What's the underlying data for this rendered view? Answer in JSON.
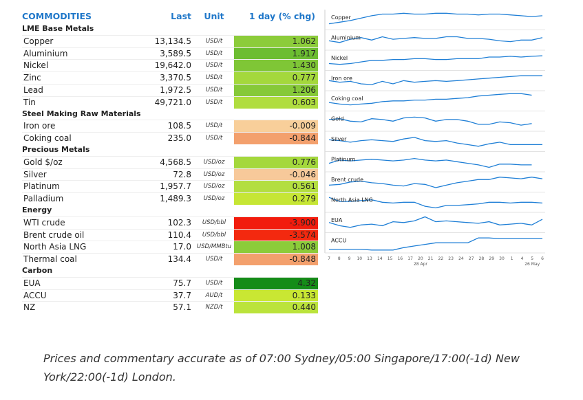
{
  "table": {
    "headers": {
      "name": "COMMODITIES",
      "last": "Last",
      "unit": "Unit",
      "chg": "1 day (% chg)"
    },
    "rows": [
      {
        "type": "section",
        "name": "LME Base Metals"
      },
      {
        "type": "item",
        "name": "Copper",
        "last": "13,134.5",
        "unit": "USD/t",
        "chg": "1.062",
        "color": "#8ccc3a"
      },
      {
        "type": "item",
        "name": "Aluminium",
        "last": "3,589.5",
        "unit": "USD/t",
        "chg": "1.917",
        "color": "#6cbd31"
      },
      {
        "type": "item",
        "name": "Nickel",
        "last": "19,642.0",
        "unit": "USD/t",
        "chg": "1.430",
        "color": "#7fc636"
      },
      {
        "type": "item",
        "name": "Zinc",
        "last": "3,370.5",
        "unit": "USD/t",
        "chg": "0.777",
        "color": "#a4d83c"
      },
      {
        "type": "item",
        "name": "Lead",
        "last": "1,972.5",
        "unit": "USD/t",
        "chg": "1.206",
        "color": "#86c938"
      },
      {
        "type": "item",
        "name": "Tin",
        "last": "49,721.0",
        "unit": "USD/t",
        "chg": "0.603",
        "color": "#b0dd3f"
      },
      {
        "type": "section",
        "name": "Steel Making Raw Materials"
      },
      {
        "type": "item",
        "name": "Iron ore",
        "last": "108.5",
        "unit": "USD/t",
        "chg": "-0.009",
        "color": "#f8cf9a"
      },
      {
        "type": "item",
        "name": "Coking coal",
        "last": "235.0",
        "unit": "USD/t",
        "chg": "-0.844",
        "color": "#f3a06d"
      },
      {
        "type": "section",
        "name": "Precious Metals"
      },
      {
        "type": "item",
        "name": "Gold $/oz",
        "last": "4,568.5",
        "unit": "USD/oz",
        "chg": "0.776",
        "color": "#a4d83c"
      },
      {
        "type": "item",
        "name": "Silver",
        "last": "72.8",
        "unit": "USD/oz",
        "chg": "-0.046",
        "color": "#f7c99a"
      },
      {
        "type": "item",
        "name": "Platinum",
        "last": "1,957.7",
        "unit": "USD/oz",
        "chg": "0.561",
        "color": "#b3de40"
      },
      {
        "type": "item",
        "name": "Palladium",
        "last": "1,489.3",
        "unit": "USD/oz",
        "chg": "0.279",
        "color": "#c6e635"
      },
      {
        "type": "section",
        "name": "Energy"
      },
      {
        "type": "item",
        "name": "WTI crude",
        "last": "102.3",
        "unit": "USD/bbl",
        "chg": "-3.900",
        "color": "#f21c0d"
      },
      {
        "type": "item",
        "name": "Brent crude oil",
        "last": "110.4",
        "unit": "USD/bbl",
        "chg": "-3.574",
        "color": "#f3290f"
      },
      {
        "type": "item",
        "name": "North Asia LNG",
        "last": "17.0",
        "unit": "USD/MMBtu",
        "chg": "1.008",
        "color": "#8ccc3a"
      },
      {
        "type": "item",
        "name": "Thermal coal",
        "last": "134.4",
        "unit": "USD/t",
        "chg": "-0.848",
        "color": "#f3a06d"
      },
      {
        "type": "section",
        "name": "Carbon"
      },
      {
        "type": "item",
        "name": "EUA",
        "last": "75.7",
        "unit": "USD/t",
        "chg": "4.32",
        "color": "#158c18"
      },
      {
        "type": "item",
        "name": "ACCU",
        "last": "37.7",
        "unit": "AUD/t",
        "chg": "0.133",
        "color": "#c9e733"
      },
      {
        "type": "item",
        "name": "NZ",
        "last": "57.1",
        "unit": "NZD/t",
        "chg": "0.440",
        "color": "#bbe33b"
      }
    ]
  },
  "sparklines": {
    "line_color": "#1f7fd6",
    "frame_color": "#cccccc",
    "x_ticks": [
      "7",
      "8",
      "9",
      "10",
      "13",
      "14",
      "15",
      "16",
      "17",
      "20",
      "21",
      "22",
      "23",
      "24",
      "27",
      "28",
      "29",
      "30",
      "1",
      "4",
      "5",
      "6"
    ],
    "date_labels": [
      {
        "text": "28 Apr",
        "after_tick": 9
      },
      {
        "text": "26 May",
        "after_tick": 20
      }
    ],
    "panels": [
      {
        "name": "Copper",
        "values": [
          0.25,
          0.35,
          0.45,
          0.6,
          0.75,
          0.85,
          0.85,
          0.9,
          0.85,
          0.85,
          0.9,
          0.9,
          0.85,
          0.85,
          0.8,
          0.85,
          0.85,
          0.8,
          0.75,
          0.7,
          0.75
        ]
      },
      {
        "name": "Aluminium",
        "values": [
          0.45,
          0.35,
          0.55,
          0.65,
          0.5,
          0.7,
          0.55,
          0.6,
          0.65,
          0.6,
          0.6,
          0.7,
          0.7,
          0.6,
          0.6,
          0.55,
          0.45,
          0.4,
          0.5,
          0.5,
          0.65
        ]
      },
      {
        "name": "Nickel",
        "values": [
          0.3,
          0.25,
          0.3,
          0.4,
          0.5,
          0.5,
          0.55,
          0.55,
          0.6,
          0.6,
          0.55,
          0.55,
          0.6,
          0.6,
          0.6,
          0.7,
          0.7,
          0.75,
          0.7,
          0.75,
          0.78
        ]
      },
      {
        "name": "Iron ore",
        "values": [
          0.5,
          0.4,
          0.45,
          0.3,
          0.25,
          0.45,
          0.3,
          0.5,
          0.4,
          0.45,
          0.5,
          0.45,
          0.5,
          0.55,
          0.6,
          0.65,
          0.7,
          0.75,
          0.8,
          0.8,
          0.8
        ]
      },
      {
        "name": "Coking coal",
        "values": [
          0.4,
          0.3,
          0.25,
          0.3,
          0.35,
          0.45,
          0.5,
          0.5,
          0.55,
          0.55,
          0.6,
          0.6,
          0.65,
          0.7,
          0.8,
          0.85,
          0.9,
          0.95,
          0.95,
          0.85,
          null
        ]
      },
      {
        "name": "Gold",
        "values": [
          0.6,
          0.65,
          0.5,
          0.45,
          0.65,
          0.6,
          0.5,
          0.7,
          0.75,
          0.7,
          0.5,
          0.6,
          0.6,
          0.5,
          0.3,
          0.3,
          0.45,
          0.4,
          0.25,
          0.35,
          null
        ]
      },
      {
        "name": "Silver",
        "values": [
          0.6,
          0.55,
          0.45,
          0.55,
          0.6,
          0.55,
          0.5,
          0.65,
          0.75,
          0.55,
          0.5,
          0.55,
          0.4,
          0.3,
          0.2,
          0.35,
          0.45,
          0.3,
          0.3,
          0.3,
          0.3
        ]
      },
      {
        "name": "Platinum",
        "values": [
          0.4,
          0.6,
          0.55,
          0.6,
          0.65,
          0.6,
          0.55,
          0.6,
          0.7,
          0.6,
          0.55,
          0.6,
          0.5,
          0.4,
          0.3,
          0.15,
          0.35,
          0.35,
          0.3,
          0.3,
          null
        ]
      },
      {
        "name": "Brent crude",
        "values": [
          0.3,
          0.35,
          0.5,
          0.55,
          0.45,
          0.4,
          0.3,
          0.25,
          0.4,
          0.35,
          0.15,
          0.3,
          0.45,
          0.55,
          0.65,
          0.65,
          0.8,
          0.75,
          0.7,
          0.8,
          0.7
        ]
      },
      {
        "name": "North Asia LNG",
        "values": [
          0.8,
          0.55,
          0.55,
          0.6,
          0.65,
          0.5,
          0.45,
          0.5,
          0.5,
          0.25,
          0.15,
          0.3,
          0.3,
          0.35,
          0.4,
          0.5,
          0.5,
          0.45,
          0.5,
          0.5,
          0.45
        ]
      },
      {
        "name": "EUA",
        "values": [
          0.5,
          0.3,
          0.2,
          0.35,
          0.4,
          0.3,
          0.55,
          0.5,
          0.6,
          0.85,
          0.55,
          0.6,
          0.55,
          0.5,
          0.45,
          0.55,
          0.35,
          0.4,
          0.45,
          0.35,
          0.7
        ]
      },
      {
        "name": "ACCU",
        "values": [
          0.1,
          0.1,
          0.1,
          0.1,
          0.05,
          0.05,
          0.05,
          0.2,
          0.3,
          0.4,
          0.5,
          0.5,
          0.5,
          0.5,
          0.8,
          0.8,
          0.75,
          0.75,
          0.75,
          0.75,
          0.75
        ]
      }
    ]
  },
  "note": "Prices and commentary accurate as of 07:00 Sydney/05:00 Singapore/17:00(-1d) New York/22:00(-1d) London."
}
